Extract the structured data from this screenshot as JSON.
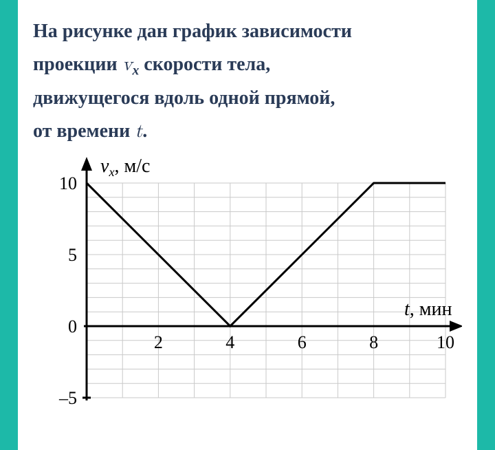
{
  "problem": {
    "line1": "На рисунке дан график зависимости",
    "line2a": "проекции ",
    "sym_v": "v",
    "sym_vx_sub": "x",
    "line2b": " скорости тела,",
    "line3": "движущегося вдоль одной прямой,",
    "line4a": "от времени ",
    "sym_t": "t",
    "line4b": "."
  },
  "chart": {
    "type": "line",
    "y_label": "vₓ, м/с",
    "x_label": "t, мин",
    "x_range": [
      0,
      10
    ],
    "y_range": [
      -5,
      10
    ],
    "x_ticks": [
      2,
      4,
      6,
      8,
      10
    ],
    "y_ticks": [
      -5,
      0,
      5,
      10
    ],
    "x_tick_labels": [
      "2",
      "4",
      "6",
      "8",
      "10"
    ],
    "y_tick_labels": [
      "–5",
      "0",
      "5",
      "10"
    ],
    "grid_color": "#c9c9c9",
    "axis_color": "#000000",
    "line_color": "#000000",
    "background_color": "#ffffff",
    "line_width": 3,
    "axis_width": 3,
    "grid_width": 1,
    "tick_fontsize": 26,
    "label_fontsize": 28,
    "data_points": [
      {
        "x": 0,
        "y": 10
      },
      {
        "x": 4,
        "y": 0
      },
      {
        "x": 8,
        "y": 10
      },
      {
        "x": 10,
        "y": 10
      }
    ]
  }
}
